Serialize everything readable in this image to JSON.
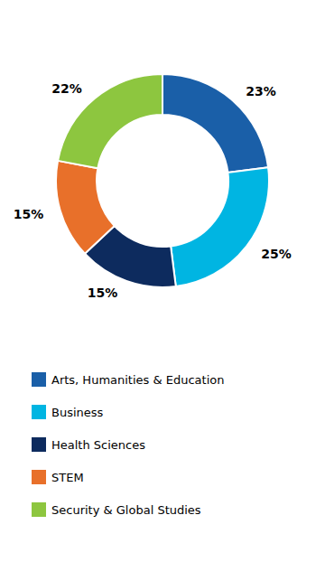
{
  "chart_data": {
    "type": "donut",
    "categories": [
      "Arts, Humanities & Education",
      "Business",
      "Health Sciences",
      "STEM",
      "Security & Global Studies"
    ],
    "values": [
      23,
      25,
      15,
      15,
      22
    ],
    "value_labels": [
      "23%",
      "25%",
      "15%",
      "15%",
      "22%"
    ],
    "colors": [
      "#1a5fa8",
      "#00b5e2",
      "#0d2b5e",
      "#e8702a",
      "#8dc63f"
    ],
    "data_labels": true,
    "legend": "bottom"
  }
}
